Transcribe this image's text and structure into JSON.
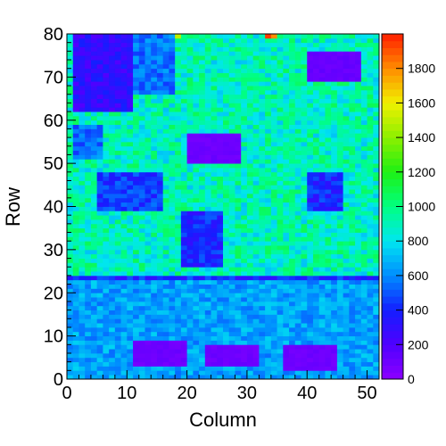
{
  "chart_data": {
    "type": "heatmap",
    "title": "",
    "xlabel": "Column",
    "ylabel": "Row",
    "xlim": [
      0,
      52
    ],
    "ylim": [
      0,
      80
    ],
    "x_ticks": [
      0,
      10,
      20,
      30,
      40,
      50
    ],
    "y_ticks": [
      0,
      10,
      20,
      30,
      40,
      50,
      60,
      70,
      80
    ],
    "colorbar": {
      "min": 0,
      "max": 2000,
      "ticks": [
        0,
        200,
        400,
        600,
        800,
        1000,
        1200,
        1400,
        1600,
        1800
      ]
    },
    "base_level": 900,
    "regions": [
      {
        "x": [
          1,
          11
        ],
        "y": [
          62,
          80
        ],
        "value": 300
      },
      {
        "x": [
          11,
          18
        ],
        "y": [
          66,
          80
        ],
        "value": 550
      },
      {
        "x": [
          1,
          6
        ],
        "y": [
          51,
          59
        ],
        "value": 550
      },
      {
        "x": [
          5,
          16
        ],
        "y": [
          39,
          48
        ],
        "value": 450
      },
      {
        "x": [
          19,
          26
        ],
        "y": [
          26,
          39
        ],
        "value": 400
      },
      {
        "x": [
          40,
          46
        ],
        "y": [
          39,
          48
        ],
        "value": 400
      },
      {
        "x": [
          20,
          29
        ],
        "y": [
          50,
          57
        ],
        "value": 100
      },
      {
        "x": [
          40,
          49
        ],
        "y": [
          69,
          76
        ],
        "value": 120
      },
      {
        "x": [
          11,
          20
        ],
        "y": [
          3,
          9
        ],
        "value": 100
      },
      {
        "x": [
          23,
          32
        ],
        "y": [
          3,
          8
        ],
        "value": 100
      },
      {
        "x": [
          36,
          45
        ],
        "y": [
          2,
          8
        ],
        "value": 100
      },
      {
        "x": [
          0,
          52
        ],
        "y": [
          0,
          23
        ],
        "value": 650
      },
      {
        "x": [
          0,
          52
        ],
        "y": [
          23,
          24
        ],
        "value": 400
      }
    ],
    "hot_cells": [
      {
        "x": 33,
        "y": 79,
        "value": 1950
      },
      {
        "x": 34,
        "y": 79,
        "value": 1800
      },
      {
        "x": 18,
        "y": 79,
        "value": 1500
      }
    ]
  }
}
